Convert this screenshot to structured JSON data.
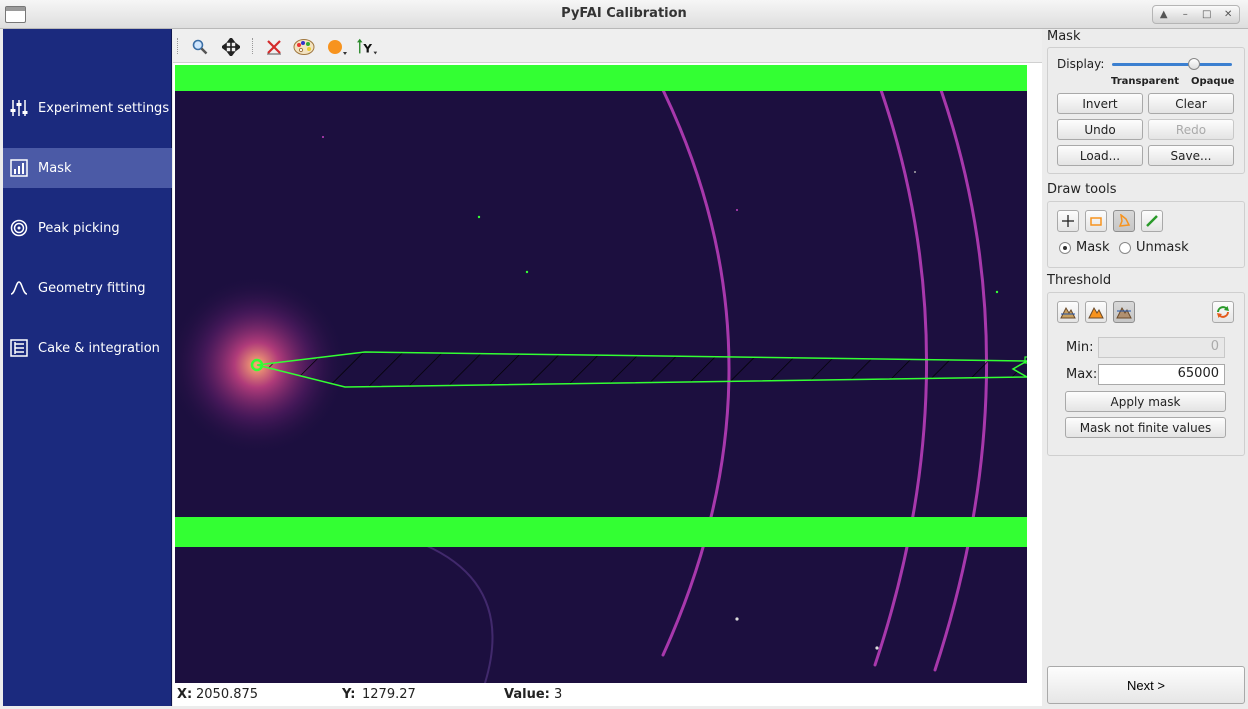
{
  "window": {
    "title": "PyFAI Calibration"
  },
  "nav": {
    "items": [
      {
        "label": "Experiment settings",
        "icon": "sliders-icon",
        "active": false
      },
      {
        "label": "Mask",
        "icon": "chart-icon",
        "active": true
      },
      {
        "label": "Peak picking",
        "icon": "target-icon",
        "active": false
      },
      {
        "label": "Geometry fitting",
        "icon": "peak-icon",
        "active": false
      },
      {
        "label": "Cake & integration",
        "icon": "cake-icon",
        "active": false
      }
    ]
  },
  "toolbar": {
    "tools": [
      "zoom-icon",
      "pan-icon",
      "reset-zoom-icon",
      "colormap-icon",
      "mask-color-icon",
      "y-axis-icon"
    ]
  },
  "status": {
    "x_label": "X:",
    "x_value": "2050.875",
    "y_label": "Y:",
    "y_value": "1279.27",
    "value_label": "Value:",
    "value_value": "3"
  },
  "mask_panel": {
    "title": "Mask",
    "display_label": "Display:",
    "slider_min_label": "Transparent",
    "slider_max_label": "Opaque",
    "slider_fraction": 0.7,
    "invert": "Invert",
    "clear": "Clear",
    "undo": "Undo",
    "redo": "Redo",
    "load": "Load...",
    "save": "Save..."
  },
  "draw_tools": {
    "title": "Draw tools",
    "mask_label": "Mask",
    "unmask_label": "Unmask",
    "selected": "Mask"
  },
  "threshold": {
    "title": "Threshold",
    "min_label": "Min:",
    "min_value": "0",
    "max_label": "Max:",
    "max_value": "65000",
    "apply": "Apply mask",
    "mask_not_finite": "Mask not finite values"
  },
  "next_label": "Next >",
  "colors": {
    "nav_bg": "#1b2a7e",
    "nav_active": "#4b5aa6",
    "mask_green": "#33ff33",
    "image_bg": "#1c0f3f",
    "ring": "#c040c0"
  }
}
